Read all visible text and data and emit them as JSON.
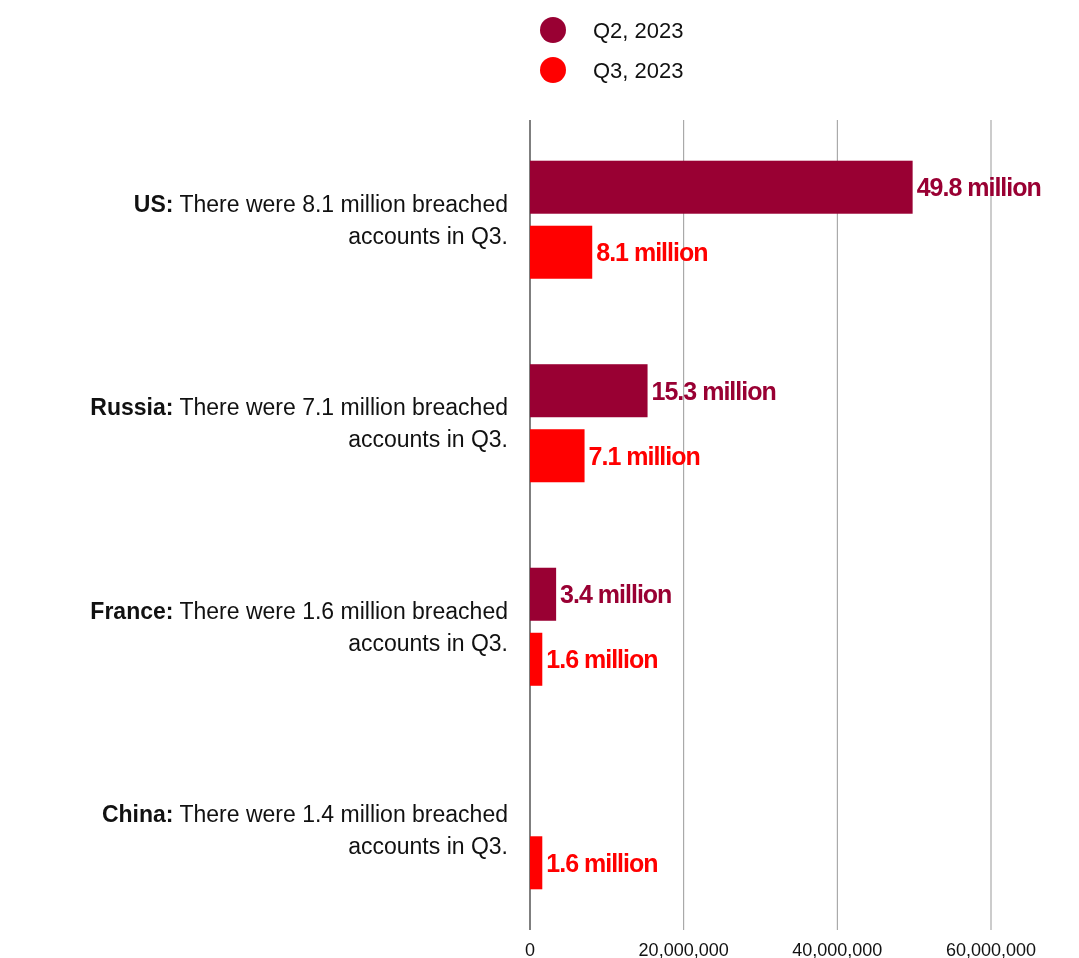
{
  "chart_data": {
    "type": "bar",
    "orientation": "horizontal",
    "categories": [
      "US: There were 8.1 million breached accounts in Q3.",
      "Russia: There were 7.1 million breached accounts in Q3.",
      "France: There were 1.6 million breached accounts in Q3.",
      "China: There were 1.4 million breached accounts in Q3."
    ],
    "series": [
      {
        "name": "Q2, 2023",
        "color": "#990033",
        "values": [
          49800000,
          15300000,
          3400000,
          null
        ],
        "value_labels": [
          "49.8 million",
          "15.3 million",
          "3.4 million",
          null
        ]
      },
      {
        "name": "Q3, 2023",
        "color": "#ff0000",
        "values": [
          8100000,
          7100000,
          1600000,
          1600000
        ],
        "value_labels": [
          "8.1 million",
          "7.1 million",
          "1.6 million",
          "1.6 million"
        ]
      }
    ],
    "xlim": [
      0,
      60000000
    ],
    "xticks": [
      0,
      {
        "value": 20000000,
        "label": "20,000,000"
      },
      {
        "value": 40000000,
        "label": "40,000,000"
      },
      {
        "value": 60000000,
        "label": "60,000,000"
      }
    ],
    "grid": "x",
    "legend": "top"
  }
}
